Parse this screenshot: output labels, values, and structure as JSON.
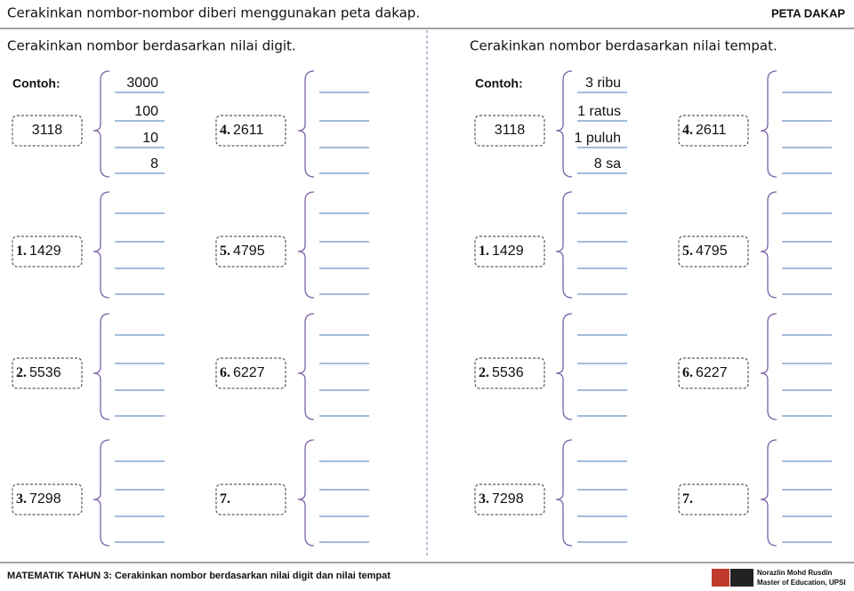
{
  "header": {
    "title": "Cerakinkan nombor-nombor diberi menggunakan peta dakap.",
    "tag": "PETA DAKAP"
  },
  "panels": [
    {
      "heading": "Cerakinkan nombor berdasarkan nilai digit.",
      "example_label": "Contoh:",
      "example": {
        "number": "3118",
        "parts": [
          "3000",
          "100",
          "10",
          "8"
        ]
      },
      "items": [
        {
          "label": "1.",
          "number": "1429"
        },
        {
          "label": "2.",
          "number": "5536"
        },
        {
          "label": "3.",
          "number": "7298"
        },
        {
          "label": "4.",
          "number": "2611"
        },
        {
          "label": "5.",
          "number": "4795"
        },
        {
          "label": "6.",
          "number": "6227"
        },
        {
          "label": "7."
        }
      ]
    },
    {
      "heading": "Cerakinkan nombor berdasarkan nilai tempat.",
      "example_label": "Contoh:",
      "example": {
        "number": "3118",
        "parts": [
          "3 ribu",
          "1 ratus",
          "1 puluh",
          "8 sa"
        ]
      },
      "items": [
        {
          "label": "1.",
          "number": "1429"
        },
        {
          "label": "2.",
          "number": "5536"
        },
        {
          "label": "3.",
          "number": "7298"
        },
        {
          "label": "4.",
          "number": "2611"
        },
        {
          "label": "5.",
          "number": "4795"
        },
        {
          "label": "6.",
          "number": "6227"
        },
        {
          "label": "7."
        }
      ]
    }
  ],
  "footer": {
    "text": "MATEMATIK TAHUN 3: Cerakinkan nombor berdasarkan nilai digit dan nilai tempat",
    "author": "Norazlin Mohd Rusdin",
    "credential": "Master of Education, UPSI"
  }
}
